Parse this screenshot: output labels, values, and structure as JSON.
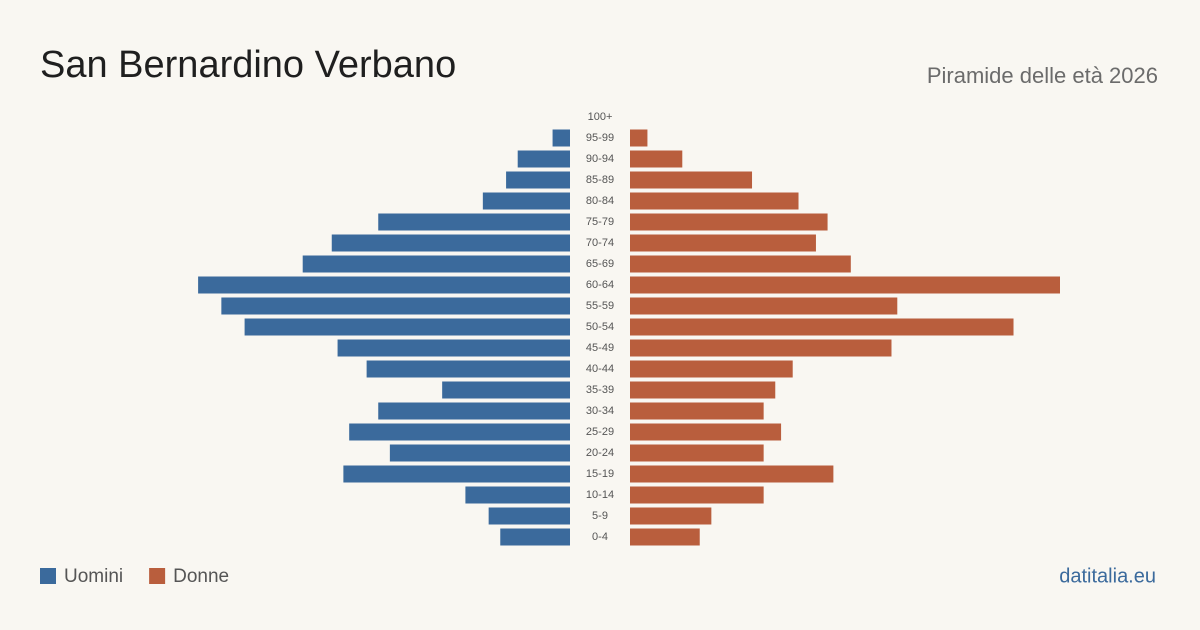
{
  "chart_data": {
    "type": "pyramid",
    "title": "San Bernardino  Verbano",
    "subtitle": "Piramide delle età 2026",
    "source": "datitalia.eu",
    "categories": [
      "100+",
      "95-99",
      "90-94",
      "85-89",
      "80-84",
      "75-79",
      "70-74",
      "65-69",
      "60-64",
      "55-59",
      "50-54",
      "45-49",
      "40-44",
      "35-39",
      "30-34",
      "25-29",
      "20-24",
      "15-19",
      "10-14",
      "5-9",
      "0-4"
    ],
    "series": [
      {
        "name": "Uomini",
        "color": "#3b6a9c",
        "values": [
          0,
          3,
          9,
          11,
          15,
          33,
          41,
          46,
          64,
          60,
          56,
          40,
          35,
          22,
          33,
          38,
          31,
          39,
          18,
          14,
          12
        ]
      },
      {
        "name": "Donne",
        "color": "#b95e3d",
        "values": [
          0,
          3,
          9,
          21,
          29,
          34,
          32,
          38,
          74,
          46,
          66,
          45,
          28,
          25,
          23,
          26,
          23,
          35,
          23,
          14,
          12
        ]
      }
    ]
  }
}
